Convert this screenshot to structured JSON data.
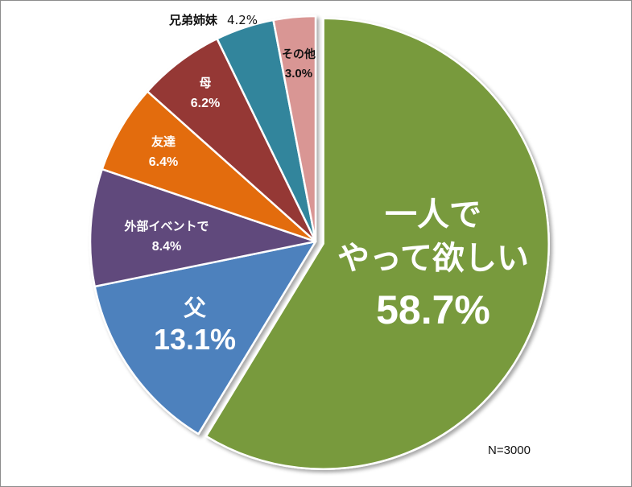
{
  "chart_data": {
    "type": "pie",
    "slices": [
      {
        "lines": [
          "一人で",
          "やって欲しい"
        ],
        "value": 58.7,
        "value_label": "58.7%",
        "color": "#789A3C"
      },
      {
        "lines": [
          "父"
        ],
        "value": 13.1,
        "value_label": "13.1%",
        "color": "#4E81BD"
      },
      {
        "lines": [
          "外部イベントで"
        ],
        "value": 8.4,
        "value_label": "8.4%",
        "color": "#604A7B"
      },
      {
        "lines": [
          "友達"
        ],
        "value": 6.4,
        "value_label": "6.4%",
        "color": "#E36C09"
      },
      {
        "lines": [
          "母"
        ],
        "value": 6.2,
        "value_label": "6.2%",
        "color": "#953735"
      },
      {
        "lines": [
          "兄弟姉妹"
        ],
        "value": 4.2,
        "value_label": "4.2%",
        "color": "#31859C"
      },
      {
        "lines": [
          "その他"
        ],
        "value": 3.0,
        "value_label": "3.0%",
        "color": "#D99694"
      }
    ],
    "exploded_slice": "一人でやって欲しい"
  },
  "note": "N=3000"
}
